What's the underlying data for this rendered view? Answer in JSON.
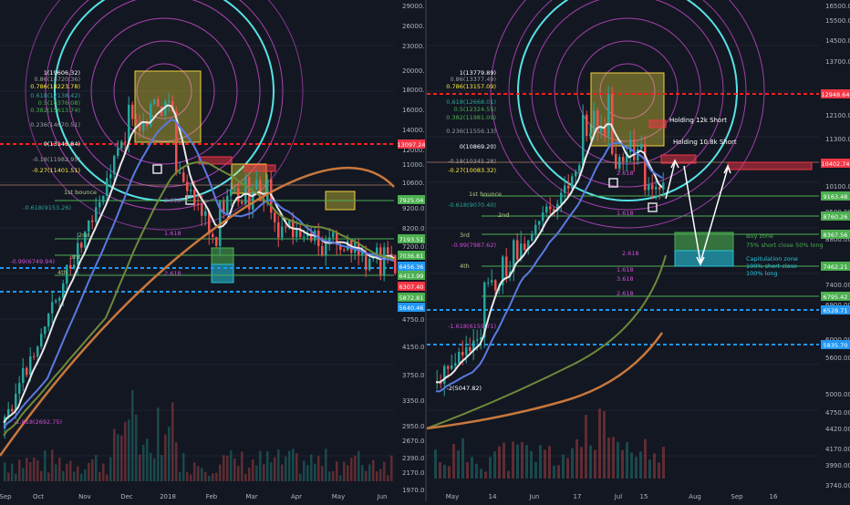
{
  "charts": [
    {
      "id": "left",
      "y_axis_labels": [
        "29000.00",
        "26000.00",
        "23000.00",
        "20000.00",
        "18000.00",
        "16000.00",
        "14000.00",
        "12000.00",
        "11000.00",
        "10600.00",
        "9200.00",
        "8200.00",
        "7200.00",
        "5800.00",
        "4750.00",
        "4150.00",
        "3750.00",
        "3350.00",
        "2950.00",
        "2670.00",
        "2390.00",
        "2170.00",
        "1970.00"
      ],
      "x_axis_labels": [
        "Sep",
        "Oct",
        "Nov",
        "Dec",
        "2018",
        "Feb",
        "Mar",
        "Apr",
        "May",
        "Jun"
      ],
      "fib_labels": [
        "1(19606.32)",
        "0.86(18720.36)",
        "0.786(18223.78)",
        "0.618(17138.42)",
        "0.5(16376.08)",
        "0.382(15613.74)",
        "0.236(14670.51)",
        "0(13145.84)",
        "-0.18(11982.95)",
        "-0.27(11401.51)",
        "-0.618(9153.26)",
        "-0.99(6749.94)",
        "-1.618(2692.75)"
      ],
      "annotations": [
        "1st bounce",
        "2nd",
        "3rd",
        "4th",
        "2.618",
        "1.618",
        "2.618"
      ],
      "price_tags": [
        {
          "text": "13097.24",
          "color": "#f23645"
        },
        {
          "text": "7925.04",
          "color": "#4caf50"
        },
        {
          "text": "7193.51",
          "color": "#4caf50"
        },
        {
          "text": "7036.81",
          "color": "#4caf50"
        },
        {
          "text": "6456.36",
          "color": "#2196f3"
        },
        {
          "text": "6413.99",
          "color": "#4caf50"
        },
        {
          "text": "6307.40",
          "color": "#f23645"
        },
        {
          "text": "5872.81",
          "color": "#4caf50"
        },
        {
          "text": "5640.46",
          "color": "#2196f3"
        }
      ]
    },
    {
      "id": "right",
      "y_axis_labels": [
        "16500.00",
        "15500.00",
        "14500.00",
        "13700.00",
        "12100.00",
        "11300.00",
        "10100.00",
        "9500.00",
        "8800.00",
        "8000.00",
        "7400.00",
        "6900.00",
        "6000.00",
        "5600.00",
        "5000.00",
        "4750.00",
        "4420.00",
        "4170.00",
        "3990.00",
        "3740.00"
      ],
      "x_axis_labels": [
        "May",
        "Jun",
        "Jul",
        "Aug",
        "Sep",
        "16"
      ],
      "x_axis_numbers": [
        "14",
        "17",
        "15"
      ],
      "fib_labels": [
        "1(13779.89)",
        "0.86(13377.49)",
        "0.786(13157.09)",
        "0.618(12668.01)",
        "0.5(12324.55)",
        "0.382(11981.09)",
        "0.236(11556.13)",
        "0(10869.20)",
        "-0.18(10345.28)",
        "-0.27(10083.32)",
        "-0.618(9070.40)",
        "-0.99(7987.62)",
        "-1.618(6159.71)",
        "-2(5047.82)"
      ],
      "annotations": [
        "1st bounce",
        "2nd",
        "3rd",
        "4th",
        "2.618",
        "1.618",
        "2.618",
        "1.618",
        "3.618",
        "2.618"
      ],
      "position_labels": [
        "Holding 12k Short",
        "Holding 10.8k Short"
      ],
      "zone_texts": [
        "Buy zone",
        "75% short close 50% long",
        "Capitulation zone",
        "100% short close",
        "100% long"
      ],
      "price_tags": [
        {
          "text": "12948.64",
          "color": "#f23645"
        },
        {
          "text": "10402.74",
          "color": "#f23645"
        },
        {
          "text": "9163.48",
          "color": "#4caf50"
        },
        {
          "text": "8760.26",
          "color": "#4caf50"
        },
        {
          "text": "8367.56",
          "color": "#4caf50"
        },
        {
          "text": "7462.21",
          "color": "#4caf50"
        },
        {
          "text": "6795.42",
          "color": "#4caf50"
        },
        {
          "text": "6528.71",
          "color": "#2196f3"
        },
        {
          "text": "5835.70",
          "color": "#2196f3"
        }
      ]
    }
  ],
  "colors": {
    "background": "#131722",
    "axis_text": "#b2b5be",
    "grid": "#1f2330",
    "up": "#26a69a",
    "down": "#ef5350",
    "fib_circle": "#d24dd8",
    "cyan_circle": "#56e3e6",
    "red_dash": "#ff1e1e",
    "blue_dash": "#2196f3",
    "fib_text": "#c7b77a"
  }
}
